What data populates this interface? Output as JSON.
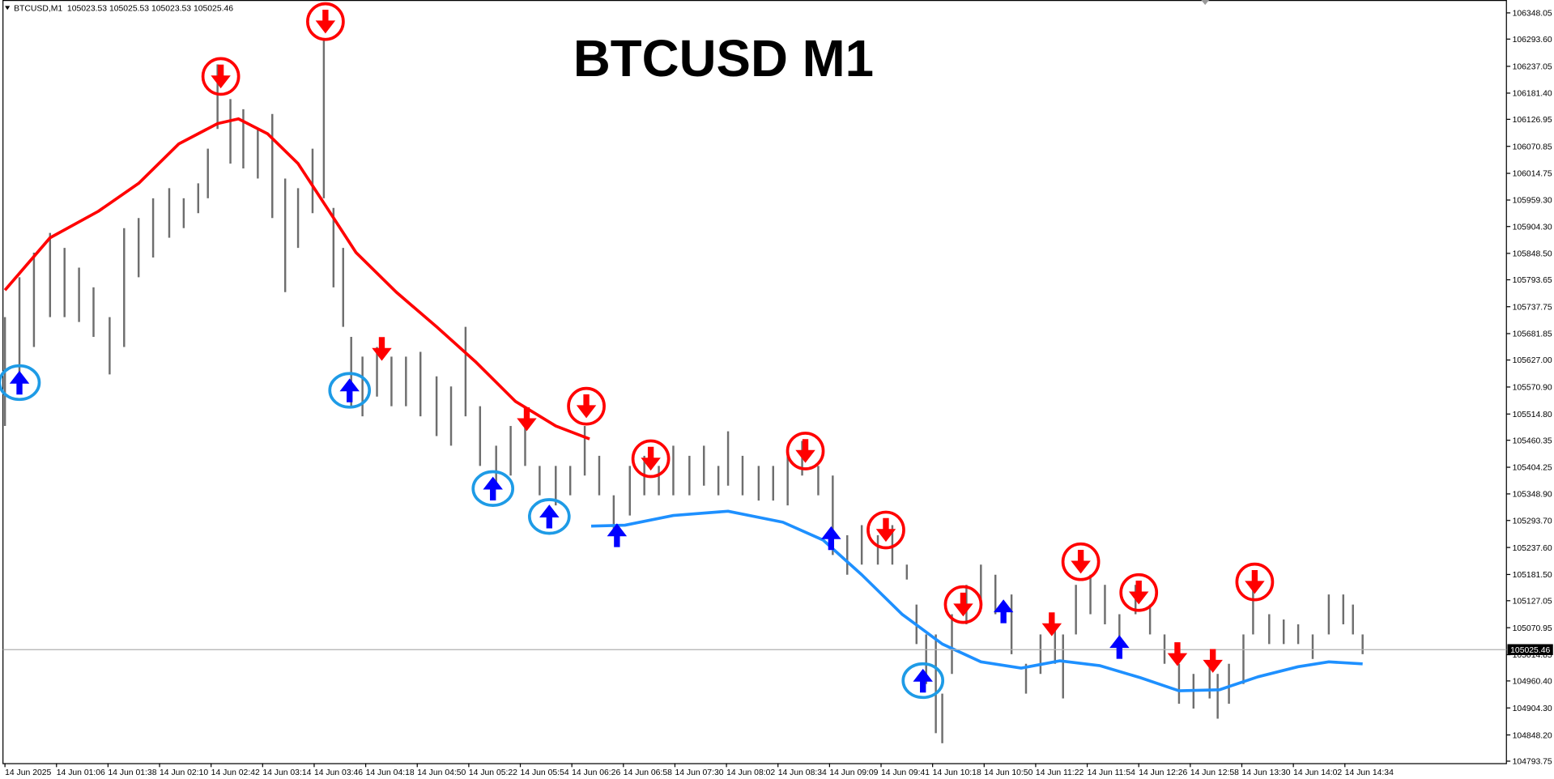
{
  "chart_data": {
    "type": "ohlc",
    "title": "BTCUSD M1",
    "info": "BTCUSD,M1  105023.53 105025.53 105023.53 105025.46",
    "grid": false,
    "bars": {
      "color": "#6e6e6e",
      "x": [
        0,
        9,
        18,
        28,
        37,
        46,
        55,
        65,
        74,
        83,
        92,
        102,
        111,
        120,
        126,
        132,
        140,
        148,
        157,
        166,
        174,
        182,
        191,
        198,
        204,
        210,
        215,
        222,
        231,
        240,
        249,
        258,
        268,
        277,
        286,
        295,
        305,
        314,
        323,
        332,
        342,
        351,
        360,
        369,
        378,
        388,
        397,
        406,
        415,
        425,
        434,
        443,
        449,
        458,
        468,
        477,
        486,
        495,
        505,
        514,
        523,
        532,
        542,
        551,
        560,
        566,
        572,
        578,
        582,
        588,
        597,
        606,
        615,
        625,
        634,
        643,
        652,
        657,
        665,
        674,
        683,
        692,
        702,
        711,
        720,
        729,
        738,
        748,
        753,
        760,
        769,
        775,
        785,
        794,
        803,
        812,
        822,
        831,
        837,
        843
      ],
      "high": [
        105716,
        105799,
        105850,
        105891,
        105860,
        105819,
        105778,
        105716,
        105901,
        105922,
        105963,
        105984,
        105963,
        105994,
        106066,
        106241,
        106169,
        106148,
        106107,
        106138,
        106004,
        105984,
        106066,
        106293,
        105943,
        105860,
        105675,
        105634,
        105654,
        105634,
        105634,
        105644,
        105593,
        105572,
        105696,
        105531,
        105449,
        105490,
        105510,
        105407,
        105407,
        105407,
        105490,
        105428,
        105346,
        105407,
        105428,
        105407,
        105449,
        105428,
        105449,
        105407,
        105479,
        105428,
        105407,
        105407,
        105428,
        105459,
        105407,
        105387,
        105263,
        105284,
        105263,
        105284,
        105202,
        105119,
        105057,
        105057,
        104934,
        105099,
        105160,
        105202,
        105181,
        105140,
        104996,
        105057,
        105078,
        105057,
        105160,
        105181,
        105160,
        105099,
        105160,
        105119,
        105057,
        104996,
        104975,
        104996,
        104975,
        104996,
        105057,
        105160,
        105099,
        105088,
        105078,
        105057,
        105140,
        105140,
        105119,
        105057
      ],
      "low": [
        105490,
        105593,
        105654,
        105716,
        105716,
        105706,
        105675,
        105597,
        105654,
        105799,
        105840,
        105881,
        105901,
        105932,
        105963,
        106107,
        106035,
        106025,
        106004,
        105922,
        105768,
        105860,
        105932,
        105963,
        105778,
        105696,
        105531,
        105510,
        105551,
        105531,
        105531,
        105510,
        105469,
        105449,
        105510,
        105407,
        105366,
        105387,
        105407,
        105346,
        105325,
        105346,
        105387,
        105346,
        105274,
        105304,
        105346,
        105346,
        105346,
        105346,
        105366,
        105346,
        105366,
        105346,
        105335,
        105335,
        105325,
        105387,
        105346,
        105222,
        105181,
        105202,
        105202,
        105202,
        105171,
        105037,
        104954,
        104852,
        104831,
        104975,
        105078,
        105119,
        105099,
        105016,
        104934,
        104975,
        104996,
        104924,
        105057,
        105099,
        105078,
        105037,
        105099,
        105057,
        104996,
        104913,
        104903,
        104924,
        104882,
        104913,
        104954,
        105057,
        105037,
        105037,
        105037,
        105006,
        105057,
        105078,
        105057,
        105016
      ]
    },
    "lines": [
      {
        "color": "#ff0000",
        "x": [
          0,
          28,
          58,
          83,
          108,
          132,
          145,
          163,
          182,
          200,
          218,
          243,
          268,
          292,
          317,
          342,
          363
        ],
        "values": [
          105772,
          105881,
          105936,
          105994,
          106076,
          106118,
          106128,
          106097,
          106035,
          105943,
          105850,
          105768,
          105696,
          105624,
          105541,
          105490,
          105463
        ]
      },
      {
        "color": "#1e90ff",
        "x": [
          364,
          385,
          415,
          449,
          483,
          508,
          532,
          557,
          582,
          606,
          631,
          655,
          680,
          705,
          729,
          754,
          778,
          803,
          822,
          843
        ],
        "values": [
          105282,
          105284,
          105304,
          105313,
          105290,
          105253,
          105181,
          105099,
          105037,
          105000,
          104987,
          105002,
          104992,
          104967,
          104940,
          104942,
          104969,
          104990,
          105000,
          104996
        ]
      }
    ],
    "sell_signals": {
      "color": "#ff0000",
      "circle_color": "#ff0000",
      "x": [
        134,
        199,
        361,
        401,
        497,
        547,
        595,
        668,
        704,
        776,
        234,
        324,
        650,
        728,
        750
      ],
      "values": [
        106216,
        106330,
        105531,
        105422,
        105438,
        105274,
        105119,
        105208,
        105144,
        105166,
        105650,
        105504,
        105078,
        105016,
        105002
      ],
      "circled": [
        true,
        true,
        true,
        true,
        true,
        true,
        true,
        true,
        true,
        true,
        false,
        false,
        false,
        false,
        false
      ]
    },
    "buy_signals": {
      "color": "#0000ff",
      "circle_color": "#1e9be6",
      "x": [
        9,
        214,
        303,
        338,
        570,
        380,
        513,
        620,
        692
      ],
      "values": [
        105580,
        105564,
        105360,
        105302,
        104961,
        105263,
        105257,
        105105,
        105031
      ],
      "circled": [
        true,
        true,
        true,
        true,
        true,
        false,
        false,
        false,
        false
      ]
    },
    "last_price": 105025.46,
    "xlim": [
      -1.23,
      932.3
    ],
    "xticks": [
      {
        "value": 0,
        "label": "14 Jun 2025"
      },
      {
        "value": 32,
        "label": "14 Jun 01:06"
      },
      {
        "value": 64,
        "label": "14 Jun 01:38"
      },
      {
        "value": 96,
        "label": "14 Jun 02:10"
      },
      {
        "value": 128,
        "label": "14 Jun 02:42"
      },
      {
        "value": 160,
        "label": "14 Jun 03:14"
      },
      {
        "value": 192,
        "label": "14 Jun 03:46"
      },
      {
        "value": 224,
        "label": "14 Jun 04:18"
      },
      {
        "value": 256,
        "label": "14 Jun 04:50"
      },
      {
        "value": 288,
        "label": "14 Jun 05:22"
      },
      {
        "value": 320,
        "label": "14 Jun 05:54"
      },
      {
        "value": 352,
        "label": "14 Jun 06:26"
      },
      {
        "value": 384,
        "label": "14 Jun 06:58"
      },
      {
        "value": 416,
        "label": "14 Jun 07:30"
      },
      {
        "value": 448,
        "label": "14 Jun 08:02"
      },
      {
        "value": 480,
        "label": "14 Jun 08:34"
      },
      {
        "value": 512,
        "label": "14 Jun 09:09"
      },
      {
        "value": 544,
        "label": "14 Jun 09:41"
      },
      {
        "value": 576,
        "label": "14 Jun 10:18"
      },
      {
        "value": 608,
        "label": "14 Jun 10:50"
      },
      {
        "value": 640,
        "label": "14 Jun 11:22"
      },
      {
        "value": 672,
        "label": "14 Jun 11:54"
      },
      {
        "value": 704,
        "label": "14 Jun 12:26"
      },
      {
        "value": 736,
        "label": "14 Jun 12:58"
      },
      {
        "value": 768,
        "label": "14 Jun 13:30"
      },
      {
        "value": 800,
        "label": "14 Jun 14:02"
      },
      {
        "value": 832,
        "label": "14 Jun 14:34"
      }
    ],
    "ylim": [
      104789.63,
      106374.81
    ],
    "yticks": [
      106348.05,
      {
        "value": 106293.6,
        "label": "106293.60"
      },
      106237.05,
      {
        "value": 106181.4,
        "label": "106181.40"
      },
      106126.95,
      106070.85,
      106014.75,
      {
        "value": 105959.3,
        "label": "105959.30"
      },
      {
        "value": 105904.3,
        "label": "105904.30"
      },
      {
        "value": 105848.5,
        "label": "105848.50"
      },
      105793.65,
      105737.75,
      105681.85,
      {
        "value": 105627,
        "label": "105627.00"
      },
      {
        "value": 105570.9,
        "label": "105570.90"
      },
      {
        "value": 105514.8,
        "label": "105514.80"
      },
      105460.35,
      105404.25,
      {
        "value": 105348.9,
        "label": "105348.90"
      },
      {
        "value": 105293.7,
        "label": "105293.70"
      },
      {
        "value": 105237.6,
        "label": "105237.60"
      },
      {
        "value": 105181.5,
        "label": "105181.50"
      },
      105127.05,
      105070.95,
      105014.85,
      {
        "value": 104960.4,
        "label": "104960.40"
      },
      {
        "value": 104904.3,
        "label": "104904.30"
      },
      {
        "value": 104848.2,
        "label": "104848.20"
      },
      104793.75
    ]
  }
}
